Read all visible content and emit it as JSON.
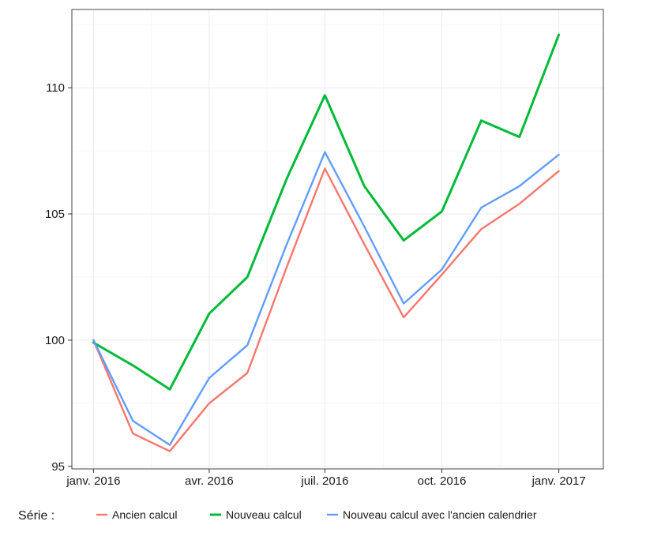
{
  "chart_data": {
    "type": "line",
    "x": [
      "2016-01",
      "2016-02",
      "2016-03",
      "2016-04",
      "2016-05",
      "2016-06",
      "2016-07",
      "2016-08",
      "2016-09",
      "2016-10",
      "2016-11",
      "2016-12",
      "2017-01"
    ],
    "series": [
      {
        "name": "Ancien calcul",
        "color": "#f8766d",
        "values": [
          100.0,
          96.3,
          95.6,
          97.5,
          98.7,
          102.9,
          106.8,
          103.8,
          100.9,
          102.6,
          104.4,
          105.4,
          106.7
        ]
      },
      {
        "name": "Nouveau calcul",
        "color": "#00ba38",
        "values": [
          99.9,
          99.0,
          98.05,
          101.05,
          102.5,
          106.4,
          109.7,
          106.1,
          103.95,
          105.1,
          108.7,
          108.05,
          112.1
        ]
      },
      {
        "name": "Nouveau calcul avec l'ancien calendrier",
        "color": "#619cff",
        "values": [
          100.0,
          96.8,
          95.85,
          98.5,
          99.8,
          103.8,
          107.45,
          104.5,
          101.45,
          102.8,
          105.25,
          106.1,
          107.35
        ]
      }
    ],
    "xticks": [
      {
        "x": "2016-01",
        "label": "janv. 2016"
      },
      {
        "x": "2016-04",
        "label": "avr. 2016"
      },
      {
        "x": "2016-07",
        "label": "juil. 2016"
      },
      {
        "x": "2016-10",
        "label": "oct. 2016"
      },
      {
        "x": "2017-01",
        "label": "janv. 2017"
      }
    ],
    "yticks": [
      95,
      100,
      105,
      110
    ],
    "ylim": [
      94.9,
      113.1
    ],
    "xlim": [
      "2015-12-15",
      "2017-02-05"
    ],
    "grid": true,
    "legend": {
      "title": "Série :",
      "position": "bottom"
    },
    "title": "",
    "xlabel": "",
    "ylabel": ""
  }
}
